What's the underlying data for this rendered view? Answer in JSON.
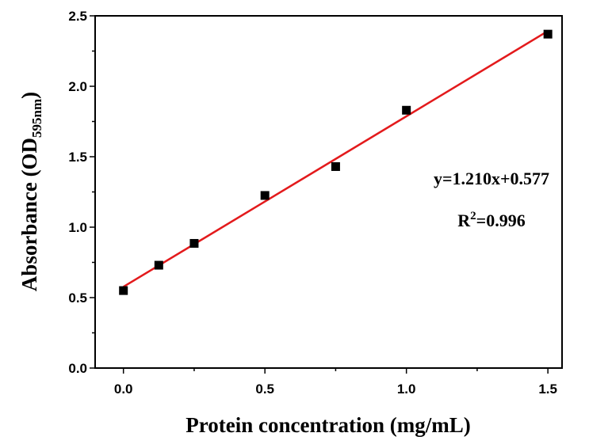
{
  "chart_data": {
    "type": "scatter",
    "xlabel": "Protein concentration (mg/mL)",
    "ylabel": {
      "main": "Absorbance (OD",
      "subscript": "595nm",
      "close": ")"
    },
    "xlim": [
      -0.1,
      1.55
    ],
    "ylim": [
      0,
      2.5
    ],
    "x_ticks": [
      "0.0",
      "0.5",
      "1.0",
      "1.5"
    ],
    "x_tick_values": [
      0,
      0.5,
      1.0,
      1.5
    ],
    "y_ticks": [
      "0.0",
      "0.5",
      "1.0",
      "1.5",
      "2.0",
      "2.5"
    ],
    "y_tick_values": [
      0,
      0.5,
      1.0,
      1.5,
      2.0,
      2.5
    ],
    "points": [
      {
        "x": 0.0,
        "y": 0.55
      },
      {
        "x": 0.125,
        "y": 0.73
      },
      {
        "x": 0.25,
        "y": 0.885
      },
      {
        "x": 0.5,
        "y": 1.225
      },
      {
        "x": 0.75,
        "y": 1.43
      },
      {
        "x": 1.0,
        "y": 1.83
      },
      {
        "x": 1.5,
        "y": 2.37
      }
    ],
    "fit_line": {
      "slope": 1.21,
      "intercept": 0.577,
      "x_range": [
        0.0,
        1.5
      ],
      "color": "#e31a1c"
    },
    "marker_color": "#000000",
    "equation": "y=1.210x+0.577",
    "r_squared": {
      "prefix": "R",
      "superscript": "2",
      "value": "=0.996"
    },
    "grid": false
  }
}
